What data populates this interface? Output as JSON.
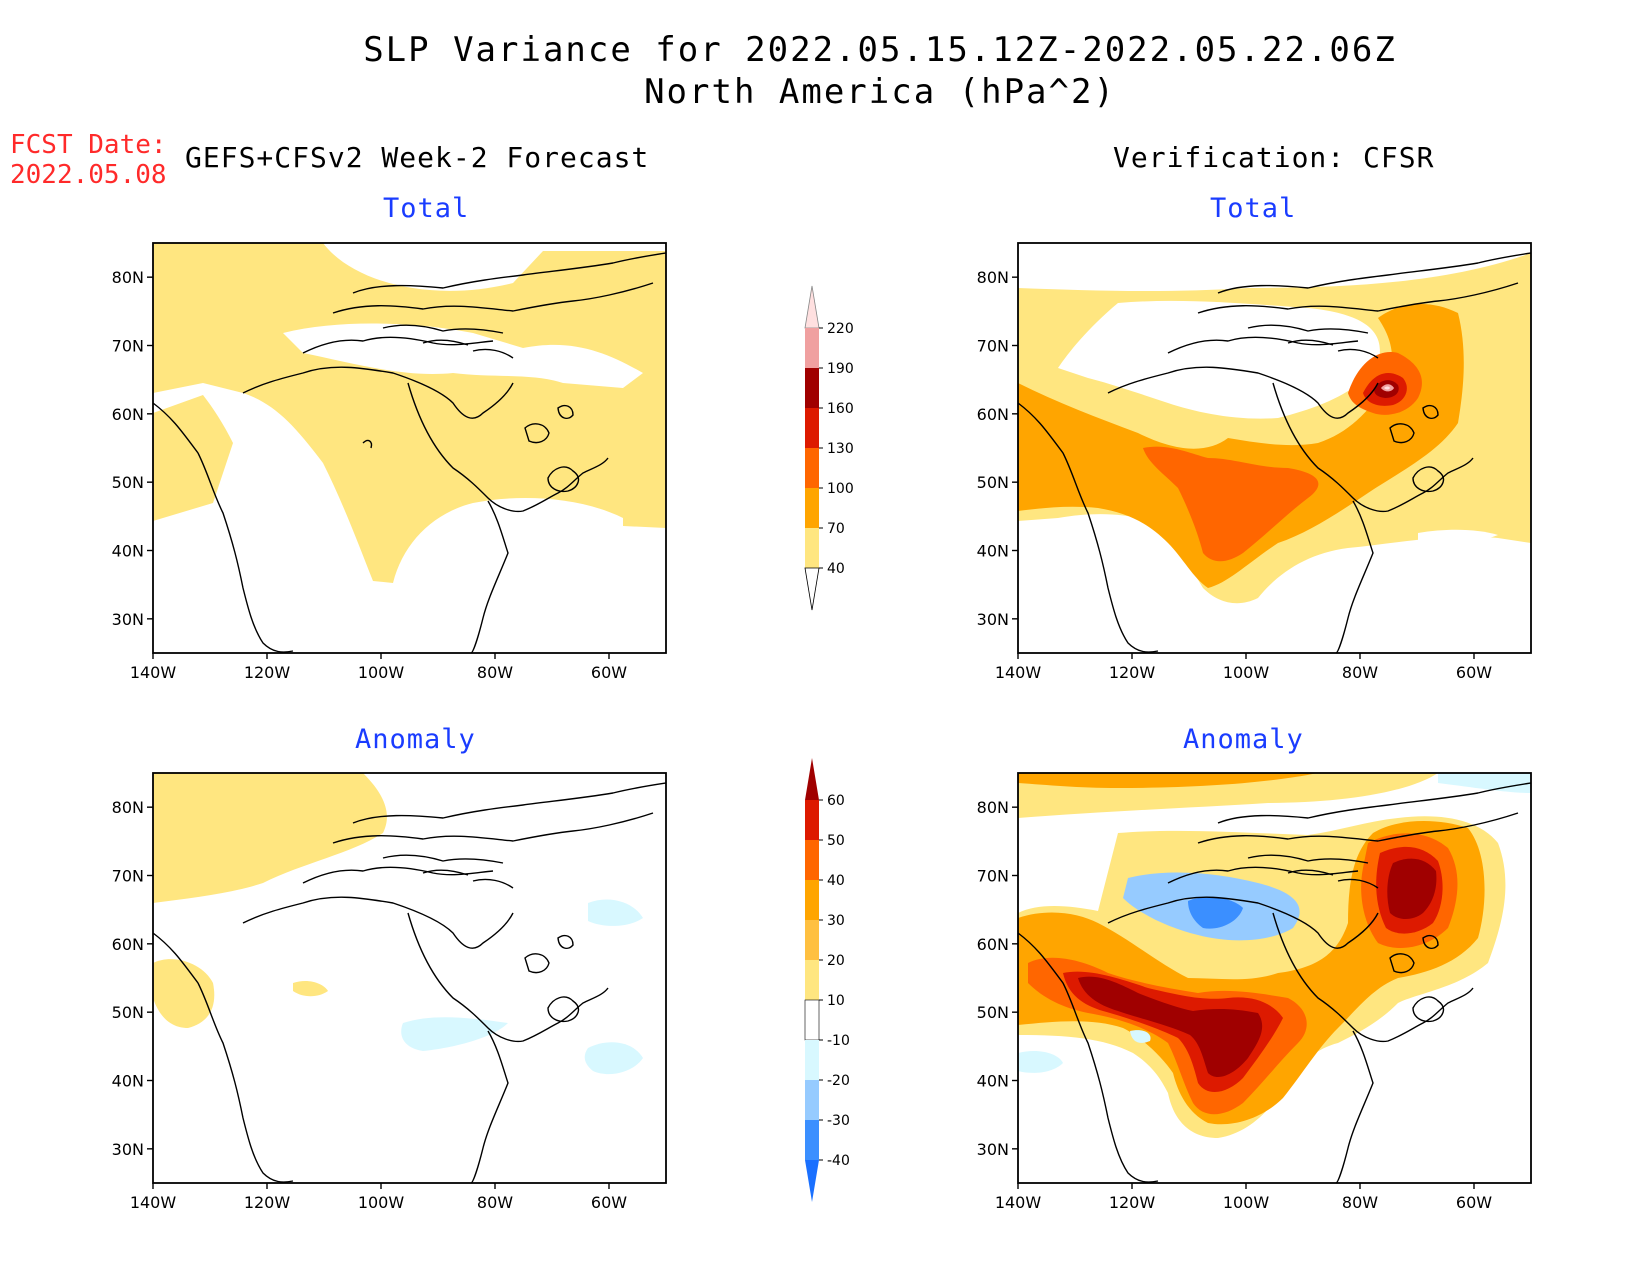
{
  "header": {
    "title_line1": "SLP Variance for 2022.05.15.12Z-2022.05.22.06Z",
    "title_line2": "North America (hPa^2)",
    "fcst_label": "FCST Date:",
    "fcst_date": "2022.05.08",
    "left_column": "GEFS+CFSv2 Week-2 Forecast",
    "right_column": "Verification: CFSR"
  },
  "panels": {
    "fc_total": {
      "title": "Total"
    },
    "fc_anom": {
      "title": "Anomaly"
    },
    "ver_total": {
      "title": "Total"
    },
    "ver_anom": {
      "title": "Anomaly"
    }
  },
  "axes": {
    "lat_labels": [
      "80N",
      "70N",
      "60N",
      "50N",
      "40N",
      "30N"
    ],
    "lon_labels": [
      "140W",
      "120W",
      "100W",
      "80W",
      "60W"
    ],
    "lat_range": [
      25,
      85
    ],
    "lon_range": [
      -140,
      -50
    ]
  },
  "colorbars": {
    "total": {
      "levels": [
        "40",
        "70",
        "100",
        "130",
        "160",
        "190",
        "220"
      ],
      "colors": [
        "#ffe680",
        "#ffa500",
        "#ff6600",
        "#dd1a00",
        "#a00000",
        "#f0a0a0",
        "#ffe0e0"
      ]
    },
    "anomaly": {
      "levels": [
        "-40",
        "-30",
        "-20",
        "-10",
        "10",
        "20",
        "30",
        "40",
        "50",
        "60"
      ],
      "colors": [
        "#1a70ff",
        "#3b8fff",
        "#96cbff",
        "#d8f8ff",
        "#ffffff",
        "#ffe680",
        "#ffc040",
        "#ffa500",
        "#ff6600",
        "#dd1a00",
        "#a00000"
      ]
    }
  }
}
